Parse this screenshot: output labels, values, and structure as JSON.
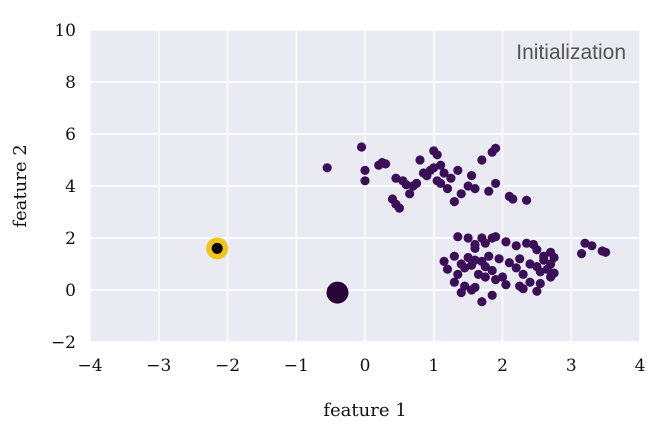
{
  "chart_data": {
    "type": "scatter",
    "title": "",
    "annotation": "Initialization",
    "xlabel": "feature 1",
    "ylabel": "feature 2",
    "xlim": [
      -4,
      4
    ],
    "ylim": [
      -2,
      10
    ],
    "xticks": [
      -4,
      -3,
      -2,
      -1,
      0,
      1,
      2,
      3,
      4
    ],
    "yticks": [
      -2,
      0,
      2,
      4,
      6,
      8,
      10
    ],
    "xtick_labels": [
      "−4",
      "−3",
      "−2",
      "−1",
      "0",
      "1",
      "2",
      "3",
      "4"
    ],
    "ytick_labels": [
      "−2",
      "0",
      "2",
      "4",
      "6",
      "8",
      "10"
    ],
    "grid": true,
    "colors": {
      "background": "#eaeaf2",
      "grid": "#ffffff",
      "points": "#3b0f57",
      "centroid_highlight": "#f2c418",
      "centroid_dark": "#2a0538",
      "centroid_core": "#000000"
    },
    "series": [
      {
        "x": [
          -0.55,
          -0.05,
          0.0,
          0.0,
          0.2,
          0.25,
          0.3,
          0.4,
          0.45,
          0.45,
          0.5,
          0.55,
          0.6,
          0.65,
          0.7,
          0.75,
          0.8,
          0.85,
          0.9,
          0.95,
          1.0,
          1.0,
          1.05,
          1.05,
          1.1,
          1.1,
          1.15,
          1.2,
          1.25,
          1.3,
          1.35,
          1.4,
          1.5,
          1.55,
          1.6,
          1.7,
          1.8,
          1.85,
          1.9,
          1.9,
          2.1,
          2.15,
          2.35,
          1.35,
          1.5,
          1.6,
          1.7,
          1.75,
          1.85,
          1.9,
          2.05,
          2.2,
          2.35,
          2.45,
          2.5,
          2.6,
          2.7,
          2.75,
          1.15,
          1.2,
          1.3,
          1.35,
          1.4,
          1.45,
          1.5,
          1.55,
          1.6,
          1.65,
          1.7,
          1.75,
          1.8,
          1.85,
          1.95,
          2.0,
          2.1,
          2.2,
          2.25,
          2.3,
          2.4,
          2.5,
          2.55,
          2.6,
          2.65,
          2.7,
          2.75,
          1.3,
          1.45,
          1.6,
          1.75,
          1.9,
          2.05,
          2.25,
          2.4,
          2.55,
          2.7,
          1.4,
          1.55,
          1.7,
          1.85,
          2.3,
          2.5,
          1.6,
          3.15,
          3.2,
          3.3,
          3.45,
          3.5
        ],
        "y": [
          4.7,
          5.5,
          4.6,
          4.2,
          4.8,
          4.9,
          4.85,
          3.5,
          3.3,
          4.3,
          3.15,
          4.2,
          4.05,
          3.7,
          4.0,
          4.1,
          5.0,
          4.5,
          4.4,
          4.6,
          4.7,
          5.35,
          4.2,
          5.2,
          4.1,
          4.8,
          4.5,
          3.9,
          4.3,
          3.4,
          4.6,
          3.7,
          4.0,
          4.4,
          3.9,
          5.0,
          3.8,
          5.3,
          5.45,
          4.1,
          3.6,
          3.5,
          3.45,
          2.05,
          2.0,
          1.75,
          2.0,
          1.8,
          2.0,
          2.05,
          1.85,
          1.7,
          1.8,
          1.75,
          1.55,
          1.3,
          1.45,
          1.25,
          1.1,
          0.8,
          1.3,
          0.6,
          1.0,
          0.85,
          1.25,
          0.95,
          1.15,
          0.6,
          1.1,
          0.9,
          1.3,
          0.75,
          1.2,
          0.5,
          1.05,
          0.85,
          1.2,
          0.6,
          1.0,
          0.9,
          0.7,
          1.15,
          0.8,
          1.0,
          0.65,
          0.3,
          0.15,
          0.1,
          0.5,
          0.4,
          0.2,
          0.15,
          0.3,
          0.25,
          0.5,
          -0.1,
          0.0,
          -0.45,
          -0.2,
          0.05,
          -0.05,
          1.6,
          1.4,
          1.8,
          1.7,
          1.5,
          1.45
        ]
      }
    ],
    "centroids": [
      {
        "x": -2.15,
        "y": 1.6,
        "style": "highlighted"
      },
      {
        "x": -0.4,
        "y": -0.1,
        "style": "dark"
      }
    ]
  }
}
